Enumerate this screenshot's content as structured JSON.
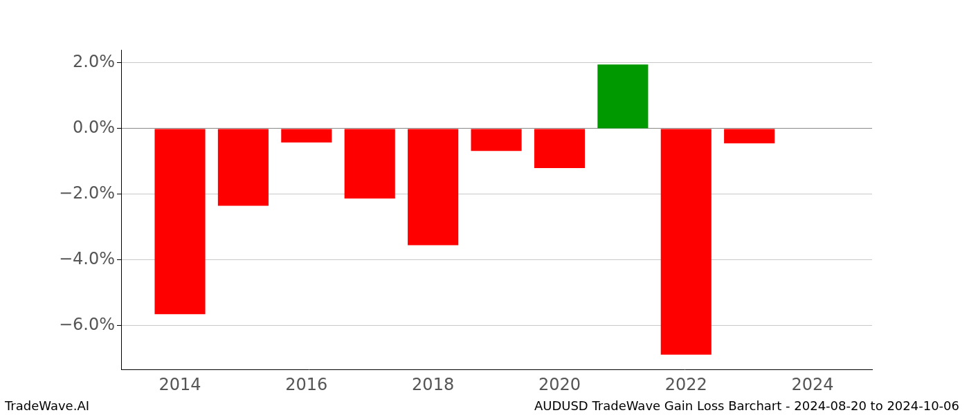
{
  "chart_data": {
    "type": "bar",
    "title": "AUDUSD TradeWave Gain Loss Barchart - 2024-08-20 to 2024-10-06",
    "annotations": [
      "TradeWave.AI"
    ],
    "x": [
      2014,
      2015,
      2016,
      2017,
      2018,
      2019,
      2020,
      2021,
      2022,
      2023
    ],
    "values": [
      -5.65,
      -2.35,
      -0.42,
      -2.13,
      -3.55,
      -0.68,
      -1.2,
      1.95,
      -6.88,
      -0.45
    ],
    "colors": [
      "#ff0000",
      "#ff0000",
      "#ff0000",
      "#ff0000",
      "#ff0000",
      "#ff0000",
      "#ff0000",
      "#009900",
      "#ff0000",
      "#ff0000"
    ],
    "xlim": [
      2013.07,
      2024.94
    ],
    "xticks": [
      2014,
      2016,
      2018,
      2020,
      2022,
      2024
    ],
    "ylim": [
      -7.33,
      2.4
    ],
    "yticks": [
      {
        "value": -6,
        "label": "−6.0%"
      },
      {
        "value": -4,
        "label": "−4.0%"
      },
      {
        "value": -2,
        "label": "−2.0%"
      },
      {
        "value": 0,
        "label": "0.0%"
      },
      {
        "value": 2,
        "label": "2.0%"
      }
    ],
    "grid": true
  }
}
